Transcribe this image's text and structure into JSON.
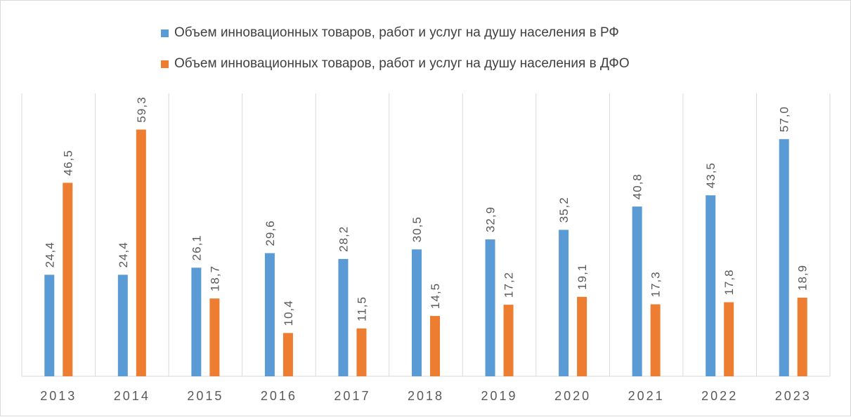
{
  "chart_data": {
    "type": "bar",
    "categories": [
      "2013",
      "2014",
      "2015",
      "2016",
      "2017",
      "2018",
      "2019",
      "2020",
      "2021",
      "2022",
      "2023"
    ],
    "series": [
      {
        "name": "Объем инновационных товаров, работ и услуг на душу населения в РФ",
        "color": "#5b9bd5",
        "values": [
          24.4,
          24.4,
          26.1,
          29.6,
          28.2,
          30.5,
          32.9,
          35.2,
          40.8,
          43.5,
          57.0
        ],
        "labels": [
          "24,4",
          "24,4",
          "26,1",
          "29,6",
          "28,2",
          "30,5",
          "32,9",
          "35,2",
          "40,8",
          "43,5",
          "57,0"
        ]
      },
      {
        "name": "Объем инновационных товаров, работ и услуг  на душу населения в ДФО",
        "color": "#ed7d31",
        "values": [
          46.5,
          59.3,
          18.7,
          10.4,
          11.5,
          14.5,
          17.2,
          19.1,
          17.3,
          17.8,
          18.9
        ],
        "labels": [
          "46,5",
          "59,3",
          "18,7",
          "10,4",
          "11,5",
          "14,5",
          "17,2",
          "19,1",
          "17,3",
          "17,8",
          "18,9"
        ]
      }
    ],
    "ylim": [
      0,
      68
    ],
    "grid": "vertical",
    "legend_position": "top"
  }
}
